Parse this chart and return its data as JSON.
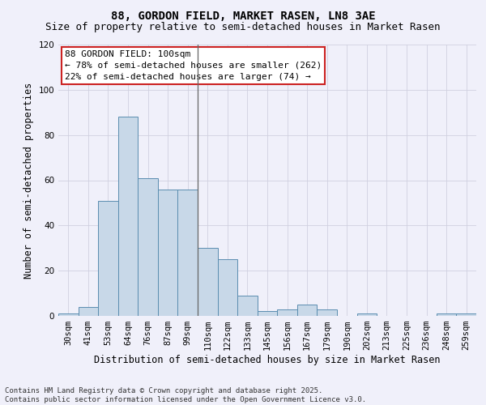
{
  "title": "88, GORDON FIELD, MARKET RASEN, LN8 3AE",
  "subtitle": "Size of property relative to semi-detached houses in Market Rasen",
  "xlabel": "Distribution of semi-detached houses by size in Market Rasen",
  "ylabel": "Number of semi-detached properties",
  "categories": [
    "30sqm",
    "41sqm",
    "53sqm",
    "64sqm",
    "76sqm",
    "87sqm",
    "99sqm",
    "110sqm",
    "122sqm",
    "133sqm",
    "145sqm",
    "156sqm",
    "167sqm",
    "179sqm",
    "190sqm",
    "202sqm",
    "213sqm",
    "225sqm",
    "236sqm",
    "248sqm",
    "259sqm"
  ],
  "values": [
    1,
    4,
    51,
    88,
    61,
    56,
    56,
    30,
    25,
    9,
    2,
    3,
    5,
    3,
    0,
    1,
    0,
    0,
    0,
    1,
    1
  ],
  "bar_color": "#c8d8e8",
  "bar_edge_color": "#5b8db0",
  "ylim": [
    0,
    120
  ],
  "yticks": [
    0,
    20,
    40,
    60,
    80,
    100,
    120
  ],
  "property_line_index": 6,
  "annotation_title": "88 GORDON FIELD: 100sqm",
  "annotation_line1": "← 78% of semi-detached houses are smaller (262)",
  "annotation_line2": "22% of semi-detached houses are larger (74) →",
  "footer_line1": "Contains HM Land Registry data © Crown copyright and database right 2025.",
  "footer_line2": "Contains public sector information licensed under the Open Government Licence v3.0.",
  "background_color": "#f0f0fa",
  "grid_color": "#d0d0e0",
  "annotation_box_color": "#ffffff",
  "annotation_border_color": "#cc2222",
  "title_fontsize": 10,
  "subtitle_fontsize": 9,
  "axis_label_fontsize": 8.5,
  "tick_fontsize": 7.5,
  "annotation_fontsize": 8,
  "footer_fontsize": 6.5
}
